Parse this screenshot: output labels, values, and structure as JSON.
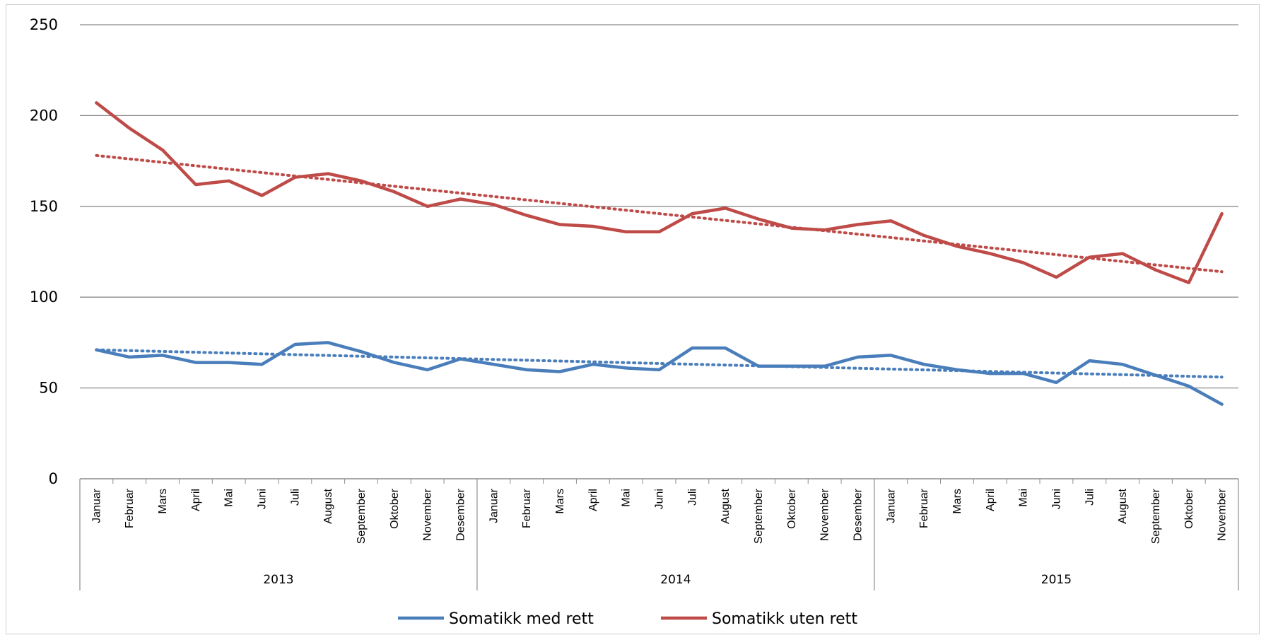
{
  "chart_data": {
    "type": "line",
    "title": "",
    "xlabel": "",
    "ylabel": "",
    "ylim": [
      0,
      250
    ],
    "yticks": [
      0,
      50,
      100,
      150,
      200,
      250
    ],
    "grid": true,
    "legend_position": "bottom",
    "months_per_year": 12,
    "years": [
      "2013",
      "2014",
      "2015"
    ],
    "categories": [
      "Januar",
      "Februar",
      "Mars",
      "April",
      "Mai",
      "Juni",
      "Juli",
      "August",
      "September",
      "Oktober",
      "November",
      "Desember",
      "Januar",
      "Februar",
      "Mars",
      "April",
      "Mai",
      "Juni",
      "Juli",
      "August",
      "September",
      "Oktober",
      "November",
      "Desember",
      "Januar",
      "Februar",
      "Mars",
      "April",
      "Mai",
      "Juni",
      "Juli",
      "August",
      "September",
      "Oktober",
      "November"
    ],
    "series": [
      {
        "name": "Somatikk med rett",
        "color": "#4a7ebb",
        "values": [
          71,
          67,
          68,
          64,
          64,
          63,
          74,
          75,
          70,
          64,
          60,
          66,
          63,
          60,
          59,
          63,
          61,
          60,
          72,
          72,
          62,
          62,
          62,
          67,
          68,
          63,
          60,
          58,
          58,
          53,
          65,
          63,
          57,
          51,
          41
        ],
        "trendline": {
          "start": 71,
          "end": 56
        }
      },
      {
        "name": "Somatikk uten rett",
        "color": "#be4b48",
        "values": [
          207,
          193,
          181,
          162,
          164,
          156,
          166,
          168,
          164,
          158,
          150,
          154,
          151,
          145,
          140,
          139,
          136,
          136,
          146,
          149,
          143,
          138,
          137,
          140,
          142,
          134,
          128,
          124,
          119,
          111,
          122,
          124,
          115,
          108,
          146
        ],
        "trendline": {
          "start": 178,
          "end": 114
        }
      }
    ]
  }
}
